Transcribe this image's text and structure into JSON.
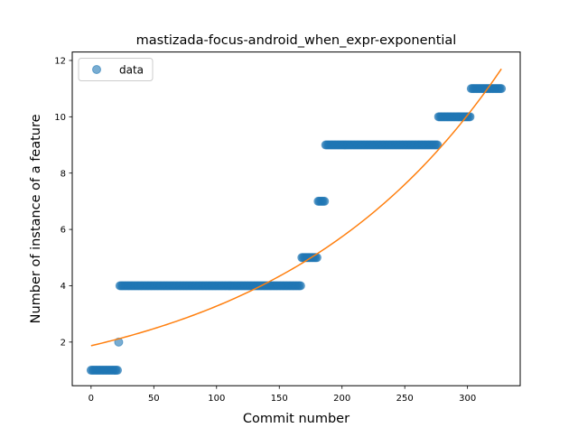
{
  "chart_data": {
    "type": "scatter",
    "title": "mastizada-focus-android_when_expr-exponential",
    "xlabel": "Commit number",
    "ylabel": "Number of instance of a feature",
    "xlim": [
      -15,
      342
    ],
    "ylim": [
      0.45,
      12.3
    ],
    "xticks": [
      0,
      50,
      100,
      150,
      200,
      250,
      300
    ],
    "yticks": [
      2,
      4,
      6,
      8,
      10,
      12
    ],
    "grid": false,
    "legend": {
      "placement": "top-left",
      "entries": [
        "data"
      ]
    },
    "colors": {
      "data": "#1f77b4",
      "fit": "#ff7f0e"
    },
    "series": [
      {
        "name": "data",
        "kind": "scatter",
        "steps": [
          {
            "x_start": 0,
            "x_end": 21,
            "y": 1
          },
          {
            "x_start": 22,
            "x_end": 22,
            "y": 2
          },
          {
            "x_start": 23,
            "x_end": 167,
            "y": 4
          },
          {
            "x_start": 168,
            "x_end": 180,
            "y": 5
          },
          {
            "x_start": 181,
            "x_end": 186,
            "y": 7
          },
          {
            "x_start": 187,
            "x_end": 276,
            "y": 9
          },
          {
            "x_start": 277,
            "x_end": 302,
            "y": 10
          },
          {
            "x_start": 303,
            "x_end": 327,
            "y": 11
          }
        ]
      },
      {
        "kind": "line",
        "model": "exponential",
        "x": [
          0,
          327
        ],
        "y": [
          1.87,
          11.7
        ]
      }
    ]
  }
}
